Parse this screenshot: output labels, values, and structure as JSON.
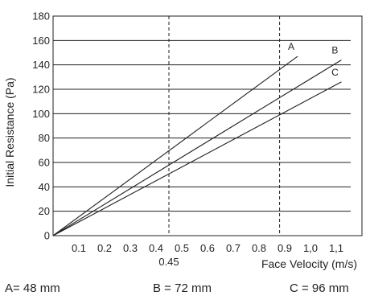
{
  "chart_data": {
    "type": "line",
    "xlabel": "Face Velocity (m/s)",
    "ylabel": "Initial Resistance (Pa)",
    "xlim": [
      0,
      1.2
    ],
    "ylim": [
      0,
      180
    ],
    "x_ticks": [
      {
        "value": 0.1,
        "label": "0.1"
      },
      {
        "value": 0.2,
        "label": "0.2"
      },
      {
        "value": 0.3,
        "label": "0.3"
      },
      {
        "value": 0.4,
        "label": "0.4"
      },
      {
        "value": 0.5,
        "label": "0.5"
      },
      {
        "value": 0.6,
        "label": "0.6"
      },
      {
        "value": 0.7,
        "label": "0.7"
      },
      {
        "value": 0.8,
        "label": "0.8"
      },
      {
        "value": 0.9,
        "label": "0.9"
      },
      {
        "value": 1.0,
        "label": "1,0"
      },
      {
        "value": 1.1,
        "label": "1,1"
      }
    ],
    "y_ticks": [
      0,
      20,
      40,
      60,
      80,
      100,
      120,
      140,
      160,
      180
    ],
    "grid": "horizontal",
    "reference_lines": [
      {
        "x": 0.45,
        "label": "0.45",
        "style": "dashed"
      },
      {
        "x": 0.88,
        "label": "",
        "style": "dashed"
      }
    ],
    "series": [
      {
        "name": "A",
        "x": [
          0,
          0.95
        ],
        "y": [
          0,
          147
        ]
      },
      {
        "name": "B",
        "x": [
          0,
          1.12
        ],
        "y": [
          0,
          144
        ]
      },
      {
        "name": "C",
        "x": [
          0,
          1.12
        ],
        "y": [
          0,
          126
        ]
      }
    ]
  },
  "legend": {
    "a": "A= 48 mm",
    "b": "B = 72 mm",
    "c": "C = 96 mm"
  }
}
